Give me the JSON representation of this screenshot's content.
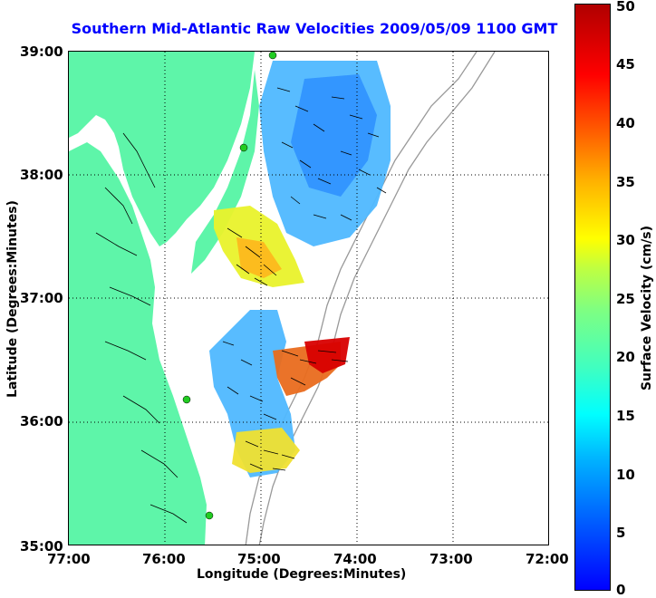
{
  "title": "Southern Mid-Atlantic Raw Velocities 2009/05/09 1100 GMT",
  "axes": {
    "xlabel": "Longitude (Degrees:Minutes)",
    "ylabel": "Latitude (Degrees:Minutes)",
    "xticks": [
      "77:00",
      "76:00",
      "75:00",
      "74:00",
      "73:00",
      "72:00"
    ],
    "yticks": [
      "39:00",
      "38:00",
      "37:00",
      "36:00",
      "35:00"
    ]
  },
  "colorbar": {
    "title": "Surface Velocity (cm/s)",
    "ticks": [
      "50",
      "45",
      "40",
      "35",
      "30",
      "25",
      "20",
      "15",
      "10",
      "5",
      "0"
    ],
    "colors": [
      "#0000ff",
      "#00b0ff",
      "#00ffff",
      "#80ff80",
      "#ffff00",
      "#ff6000",
      "#b00000"
    ]
  },
  "map": {
    "land_color": "#5ef5a9",
    "water_color": "#ffffff",
    "station_color": "#22cc22",
    "stations": [
      "station-north",
      "station-mid-north",
      "station-mid-south",
      "station-south"
    ]
  }
}
